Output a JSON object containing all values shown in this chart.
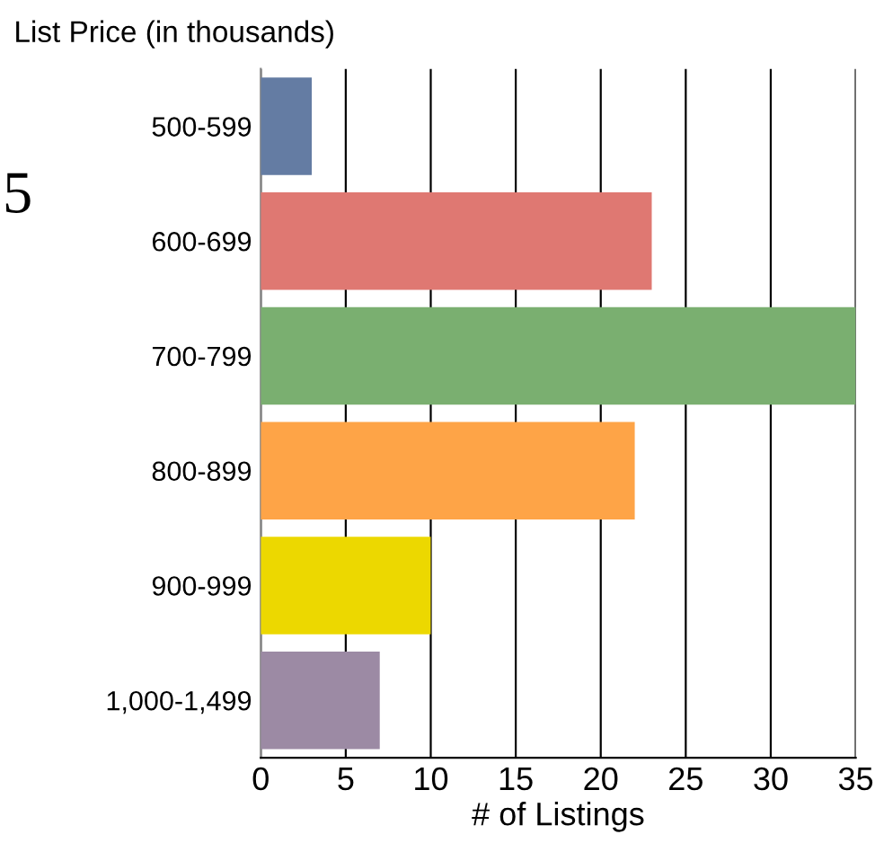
{
  "chart_data": {
    "type": "bar",
    "orientation": "horizontal",
    "ylabel": "List Price (in thousands)",
    "xlabel": "# of Listings",
    "categories": [
      "500-599",
      "600-699",
      "700-799",
      "800-899",
      "900-999",
      "1,000-1,499"
    ],
    "values": [
      3,
      23,
      35,
      22,
      10,
      7
    ],
    "colors": [
      "#647ca3",
      "#df7872",
      "#7aaf70",
      "#fea447",
      "#ecd800",
      "#9c8aa4"
    ],
    "xlim": [
      0,
      35
    ],
    "xticks": [
      0,
      5,
      10,
      15,
      20,
      25,
      30,
      35
    ],
    "grid": "x",
    "annotations": [
      "5"
    ]
  }
}
